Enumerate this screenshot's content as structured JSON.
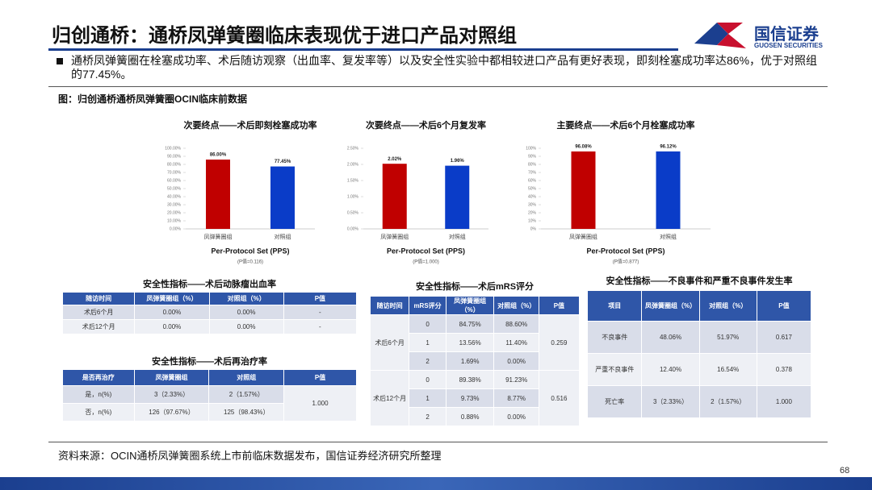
{
  "header": {
    "title": "归创通桥：通桥凤弹簧圈临床表现优于进口产品对照组",
    "logo": "国信证券",
    "logo_en": "GUOSEN SECURITIES"
  },
  "bullet": "通桥凤弹簧圈在栓塞成功率、术后随访观察（出血率、复发率等）以及安全性实验中都相较进口产品有更好表现，即刻栓塞成功率达86%，优于对照组的77.45%。",
  "figure_title": "图：归创通桥通桥凤弹簧圈OCIN临床前数据",
  "chart_data": [
    {
      "type": "bar",
      "title": "次要终点——术后即刻栓塞成功率",
      "categories": [
        "凤弹簧圈组",
        "对照组"
      ],
      "values": [
        86,
        77.45
      ],
      "value_labels": [
        "86.00%",
        "77.45%"
      ],
      "colors": [
        "#c00000",
        "#0a3cc8"
      ],
      "ylim": [
        0,
        100
      ],
      "yticks": [
        {
          "value": 0,
          "label": "0.00%"
        },
        {
          "value": 10,
          "label": "10.00%"
        },
        {
          "value": 20,
          "label": "20.00%"
        },
        {
          "value": 30,
          "label": "30.00%"
        },
        {
          "value": 40,
          "label": "40.00%"
        },
        {
          "value": 50,
          "label": "50.00%"
        },
        {
          "value": 60,
          "label": "60.00%"
        },
        {
          "value": 70,
          "label": "70.00%"
        },
        {
          "value": 80,
          "label": "80.00%"
        },
        {
          "value": 90,
          "label": "90.00%"
        },
        {
          "value": 100,
          "label": "100.00%"
        }
      ],
      "x_label": "Per-Protocol Set (PPS)",
      "note": "(P值=0.116)"
    },
    {
      "type": "bar",
      "title": "次要终点——术后6个月复发率",
      "categories": [
        "凤弹簧圈组",
        "对照组"
      ],
      "values": [
        2.02,
        1.96
      ],
      "value_labels": [
        "2.02%",
        "1.96%"
      ],
      "colors": [
        "#c00000",
        "#0a3cc8"
      ],
      "ylim": [
        0,
        2.5
      ],
      "yticks": [
        {
          "value": 0,
          "label": "0.00%"
        },
        {
          "value": 0.5,
          "label": "0.50%"
        },
        {
          "value": 1,
          "label": "1.00%"
        },
        {
          "value": 1.5,
          "label": "1.50%"
        },
        {
          "value": 2,
          "label": "2.00%"
        },
        {
          "value": 2.5,
          "label": "2.50%"
        }
      ],
      "x_label": "Per-Protocol Set (PPS)",
      "note": "(P值=1.000)"
    },
    {
      "type": "bar",
      "title": "主要终点——术后6个月栓塞成功率",
      "categories": [
        "凤弹簧圈组",
        "对照组"
      ],
      "values": [
        96.08,
        96.12
      ],
      "value_labels": [
        "96.08%",
        "96.12%"
      ],
      "colors": [
        "#c00000",
        "#0a3cc8"
      ],
      "ylim": [
        0,
        100
      ],
      "yticks": [
        {
          "value": 0,
          "label": "0%"
        },
        {
          "value": 10,
          "label": "10%"
        },
        {
          "value": 20,
          "label": "20%"
        },
        {
          "value": 30,
          "label": "30%"
        },
        {
          "value": 40,
          "label": "40%"
        },
        {
          "value": 50,
          "label": "50%"
        },
        {
          "value": 60,
          "label": "60%"
        },
        {
          "value": 70,
          "label": "70%"
        },
        {
          "value": 80,
          "label": "80%"
        },
        {
          "value": 90,
          "label": "90%"
        },
        {
          "value": 100,
          "label": "100%"
        }
      ],
      "x_label": "Per-Protocol Set (PPS)",
      "note": "(P值=0.877)"
    }
  ],
  "tables": [
    {
      "title": "安全性指标——术后动脉瘤出血率",
      "header": [
        "随访时间",
        "凤弹簧圈组（%）",
        "对照组（%）",
        "P值"
      ],
      "rows": [
        [
          "术后6个月",
          "0.00%",
          "0.00%",
          "-"
        ],
        [
          "术后12个月",
          "0.00%",
          "0.00%",
          "-"
        ]
      ]
    },
    {
      "title": "安全性指标——术后再治疗率",
      "header": [
        "是否再治疗",
        "凤弹簧圈组",
        "对照组",
        "P值"
      ],
      "rows": [
        [
          "是，n(%)",
          "3（2.33%）",
          "2（1.57%）"
        ],
        [
          "否，n(%)",
          "126（97.67%）",
          "125（98.43%）"
        ]
      ],
      "p_value": "1.000"
    },
    {
      "title": "安全性指标——术后mRS评分",
      "header": [
        "随访时间",
        "mRS评分",
        "凤弹簧圈组（%）",
        "对照组（%）",
        "P值"
      ],
      "groups": [
        {
          "time": "术后6个月",
          "p_value": "0.259",
          "rows": [
            [
              "0",
              "84.75%",
              "88.60%"
            ],
            [
              "1",
              "13.56%",
              "11.40%"
            ],
            [
              "2",
              "1.69%",
              "0.00%"
            ]
          ]
        },
        {
          "time": "术后12个月",
          "p_value": "0.516",
          "rows": [
            [
              "0",
              "89.38%",
              "91.23%"
            ],
            [
              "1",
              "9.73%",
              "8.77%"
            ],
            [
              "2",
              "0.88%",
              "0.00%"
            ]
          ]
        }
      ]
    },
    {
      "title": "安全性指标——不良事件和严重不良事件发生率",
      "header": [
        "项目",
        "凤弹簧圈组（%）",
        "对照组（%）",
        "P值"
      ],
      "rows": [
        [
          "不良事件",
          "48.06%",
          "51.97%",
          "0.617"
        ],
        [
          "严重不良事件",
          "12.40%",
          "16.54%",
          "0.378"
        ],
        [
          "死亡率",
          "3（2.33%）",
          "2（1.57%）",
          "1.000"
        ]
      ]
    }
  ],
  "source": "资料来源：OCIN通桥凤弹簧圈系统上市前临床数据发布，国信证券经济研究所整理",
  "page_number": "68"
}
